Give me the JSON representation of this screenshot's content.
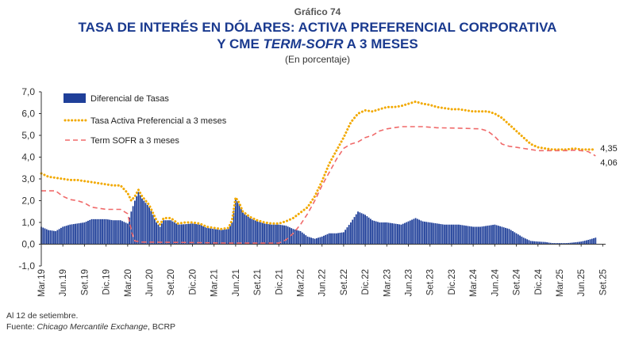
{
  "header": {
    "kicker": "Gráfico 74",
    "title_line1": "TASA DE INTERÉS EN DÓLARES: ACTIVA PREFERENCIAL CORPORATIVA",
    "title_line2_prefix": "Y CME ",
    "title_line2_italic": "TERM-SOFR",
    "title_line2_suffix": " A 3 MESES",
    "subtitle": "(En porcentaje)"
  },
  "footer": {
    "note": "Al 12 de setiembre.",
    "source_prefix": "Fuente: ",
    "source_italic": "Chicago Mercantile Exchange",
    "source_suffix": ", BCRP"
  },
  "chart_data": {
    "type": "bar+line",
    "ylim": [
      -1,
      7
    ],
    "yticks": [
      "-1,0",
      "0,0",
      "1,0",
      "2,0",
      "3,0",
      "4,0",
      "5,0",
      "6,0",
      "7,0"
    ],
    "xtick_labels": [
      "Mar.19",
      "Jun.19",
      "Set.19",
      "Dic.19",
      "Mar.20",
      "Jun.20",
      "Set.20",
      "Dic.20",
      "Mar.21",
      "Jun.21",
      "Set.21",
      "Dic.21",
      "Mar.22",
      "Jun.22",
      "Set.22",
      "Dic.22",
      "Mar.23",
      "Jun.23",
      "Set.23",
      "Dic.23",
      "Mar.24",
      "Jun.24",
      "Set.24",
      "Dic.24",
      "Mar.25",
      "Jun.25",
      "Set.25"
    ],
    "x_range_months": [
      0,
      78.4
    ],
    "legend": [
      "Diferencial de Tasas",
      "Tasa Activa Preferencial a 3 meses",
      "Term SOFR a 3 meses"
    ],
    "end_labels": [
      "4,35",
      "4,06"
    ],
    "colors": {
      "bars": "#1f3f99",
      "activa": "#f2a900",
      "sofr": "#f06a6a",
      "axis": "#333333",
      "grid": "#cfcfcf"
    },
    "series": [
      {
        "name": "Tasa Activa Preferencial a 3 meses",
        "kind": "dotted",
        "points": [
          [
            0,
            3.25
          ],
          [
            1,
            3.1
          ],
          [
            2,
            3.05
          ],
          [
            3,
            3.0
          ],
          [
            4,
            2.95
          ],
          [
            5,
            2.95
          ],
          [
            6,
            2.9
          ],
          [
            7,
            2.85
          ],
          [
            8,
            2.8
          ],
          [
            9,
            2.75
          ],
          [
            10,
            2.7
          ],
          [
            11,
            2.7
          ],
          [
            12,
            2.35
          ],
          [
            12.5,
            2.0
          ],
          [
            13,
            2.2
          ],
          [
            13.5,
            2.5
          ],
          [
            14,
            2.2
          ],
          [
            15,
            1.8
          ],
          [
            16,
            1.1
          ],
          [
            16.5,
            0.9
          ],
          [
            17,
            1.2
          ],
          [
            18,
            1.2
          ],
          [
            19,
            0.95
          ],
          [
            20,
            1.0
          ],
          [
            21,
            1.0
          ],
          [
            22,
            0.95
          ],
          [
            23,
            0.8
          ],
          [
            24,
            0.75
          ],
          [
            25,
            0.7
          ],
          [
            26,
            0.75
          ],
          [
            26.5,
            1.1
          ],
          [
            27,
            2.15
          ],
          [
            27.5,
            1.9
          ],
          [
            28,
            1.5
          ],
          [
            29,
            1.25
          ],
          [
            30,
            1.1
          ],
          [
            31,
            1.0
          ],
          [
            32,
            0.95
          ],
          [
            33,
            0.95
          ],
          [
            34,
            1.05
          ],
          [
            35,
            1.2
          ],
          [
            36,
            1.45
          ],
          [
            37,
            1.7
          ],
          [
            38,
            2.2
          ],
          [
            39,
            2.9
          ],
          [
            40,
            3.7
          ],
          [
            41,
            4.3
          ],
          [
            42,
            4.9
          ],
          [
            43,
            5.6
          ],
          [
            44,
            6.0
          ],
          [
            45,
            6.15
          ],
          [
            46,
            6.1
          ],
          [
            47,
            6.2
          ],
          [
            48,
            6.3
          ],
          [
            49,
            6.3
          ],
          [
            50,
            6.35
          ],
          [
            51,
            6.45
          ],
          [
            52,
            6.55
          ],
          [
            53,
            6.45
          ],
          [
            54,
            6.4
          ],
          [
            55,
            6.3
          ],
          [
            56,
            6.25
          ],
          [
            57,
            6.2
          ],
          [
            58,
            6.2
          ],
          [
            59,
            6.15
          ],
          [
            60,
            6.1
          ],
          [
            61,
            6.1
          ],
          [
            62,
            6.1
          ],
          [
            63,
            6.0
          ],
          [
            64,
            5.8
          ],
          [
            65,
            5.5
          ],
          [
            66,
            5.2
          ],
          [
            67,
            4.9
          ],
          [
            68,
            4.6
          ],
          [
            69,
            4.45
          ],
          [
            70,
            4.4
          ],
          [
            71,
            4.35
          ],
          [
            72,
            4.35
          ],
          [
            73,
            4.35
          ],
          [
            74,
            4.4
          ],
          [
            75,
            4.35
          ],
          [
            76,
            4.35
          ],
          [
            77,
            4.35
          ]
        ]
      },
      {
        "name": "Term SOFR a 3 meses",
        "kind": "dashed",
        "points": [
          [
            0,
            2.45
          ],
          [
            1,
            2.45
          ],
          [
            2,
            2.45
          ],
          [
            3,
            2.2
          ],
          [
            4,
            2.05
          ],
          [
            5,
            2.0
          ],
          [
            6,
            1.9
          ],
          [
            7,
            1.7
          ],
          [
            8,
            1.65
          ],
          [
            9,
            1.6
          ],
          [
            10,
            1.6
          ],
          [
            11,
            1.6
          ],
          [
            12,
            1.4
          ],
          [
            12.6,
            0.5
          ],
          [
            13,
            0.15
          ],
          [
            14,
            0.1
          ],
          [
            20,
            0.08
          ],
          [
            26,
            0.05
          ],
          [
            27,
            0.05
          ],
          [
            30,
            0.05
          ],
          [
            33,
            0.05
          ],
          [
            34,
            0.2
          ],
          [
            35,
            0.5
          ],
          [
            36,
            0.9
          ],
          [
            37,
            1.4
          ],
          [
            38,
            2.0
          ],
          [
            39,
            2.7
          ],
          [
            40,
            3.3
          ],
          [
            41,
            3.9
          ],
          [
            42,
            4.4
          ],
          [
            43,
            4.6
          ],
          [
            44,
            4.7
          ],
          [
            45,
            4.9
          ],
          [
            46,
            5.0
          ],
          [
            47,
            5.2
          ],
          [
            48,
            5.3
          ],
          [
            50,
            5.4
          ],
          [
            53,
            5.4
          ],
          [
            55,
            5.35
          ],
          [
            58,
            5.33
          ],
          [
            61,
            5.3
          ],
          [
            62,
            5.2
          ],
          [
            63,
            4.95
          ],
          [
            64,
            4.6
          ],
          [
            65,
            4.5
          ],
          [
            66,
            4.45
          ],
          [
            67,
            4.4
          ],
          [
            68,
            4.35
          ],
          [
            69,
            4.3
          ],
          [
            70,
            4.3
          ],
          [
            71,
            4.3
          ],
          [
            72,
            4.3
          ],
          [
            73,
            4.3
          ],
          [
            74,
            4.32
          ],
          [
            75,
            4.3
          ],
          [
            76,
            4.25
          ],
          [
            77,
            4.06
          ]
        ]
      },
      {
        "name": "Diferencial de Tasas",
        "kind": "bar",
        "points": [
          [
            0,
            0.8
          ],
          [
            1,
            0.65
          ],
          [
            2,
            0.6
          ],
          [
            3,
            0.8
          ],
          [
            4,
            0.9
          ],
          [
            5,
            0.95
          ],
          [
            6,
            1.0
          ],
          [
            7,
            1.15
          ],
          [
            8,
            1.15
          ],
          [
            9,
            1.15
          ],
          [
            10,
            1.1
          ],
          [
            11,
            1.1
          ],
          [
            12,
            0.95
          ],
          [
            12.5,
            1.5
          ],
          [
            13,
            2.0
          ],
          [
            13.5,
            2.4
          ],
          [
            14,
            2.1
          ],
          [
            15,
            1.7
          ],
          [
            16,
            1.0
          ],
          [
            16.5,
            0.8
          ],
          [
            17,
            1.1
          ],
          [
            18,
            1.1
          ],
          [
            19,
            0.9
          ],
          [
            20,
            0.92
          ],
          [
            21,
            0.95
          ],
          [
            22,
            0.9
          ],
          [
            23,
            0.75
          ],
          [
            24,
            0.7
          ],
          [
            25,
            0.65
          ],
          [
            26,
            0.7
          ],
          [
            26.5,
            1.0
          ],
          [
            27,
            2.1
          ],
          [
            27.5,
            1.85
          ],
          [
            28,
            1.45
          ],
          [
            29,
            1.2
          ],
          [
            30,
            1.05
          ],
          [
            31,
            0.95
          ],
          [
            32,
            0.9
          ],
          [
            33,
            0.9
          ],
          [
            34,
            0.85
          ],
          [
            35,
            0.7
          ],
          [
            36,
            0.6
          ],
          [
            37,
            0.35
          ],
          [
            38,
            0.25
          ],
          [
            39,
            0.35
          ],
          [
            40,
            0.5
          ],
          [
            41,
            0.5
          ],
          [
            42,
            0.55
          ],
          [
            43,
            1.0
          ],
          [
            44,
            1.5
          ],
          [
            45,
            1.35
          ],
          [
            46,
            1.1
          ],
          [
            47,
            1.0
          ],
          [
            48,
            1.0
          ],
          [
            49,
            0.95
          ],
          [
            50,
            0.9
          ],
          [
            51,
            1.05
          ],
          [
            52,
            1.2
          ],
          [
            53,
            1.05
          ],
          [
            54,
            1.0
          ],
          [
            55,
            0.95
          ],
          [
            56,
            0.9
          ],
          [
            57,
            0.9
          ],
          [
            58,
            0.9
          ],
          [
            59,
            0.85
          ],
          [
            60,
            0.8
          ],
          [
            61,
            0.8
          ],
          [
            62,
            0.85
          ],
          [
            63,
            0.9
          ],
          [
            64,
            0.8
          ],
          [
            65,
            0.7
          ],
          [
            66,
            0.5
          ],
          [
            67,
            0.3
          ],
          [
            68,
            0.15
          ],
          [
            69,
            0.12
          ],
          [
            70,
            0.1
          ],
          [
            71,
            0.05
          ],
          [
            72,
            0.05
          ],
          [
            73,
            0.05
          ],
          [
            74,
            0.08
          ],
          [
            75,
            0.12
          ],
          [
            76,
            0.2
          ],
          [
            77,
            0.3
          ]
        ]
      }
    ]
  }
}
